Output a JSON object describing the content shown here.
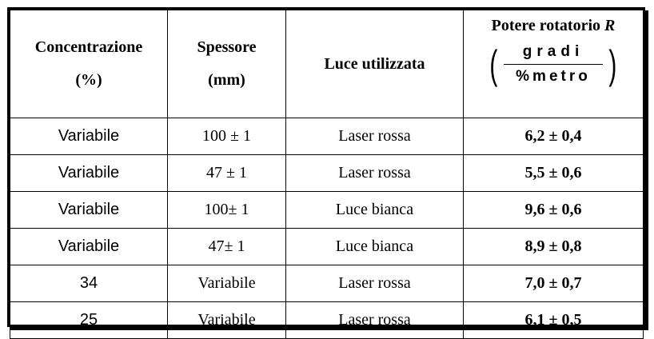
{
  "table": {
    "headers": {
      "concentration_line1": "Concentrazione",
      "concentration_line2": "(%)",
      "thickness_line1": "Spessore",
      "thickness_line2": "(mm)",
      "light": "Luce utilizzata",
      "rotatory_prefix": "Potere rotatorio ",
      "rotatory_symbol": "R",
      "unit_numerator": "gradi",
      "unit_denominator": "%metro"
    },
    "rows": [
      {
        "concentration": "Variabile",
        "thickness": "100 ± 1",
        "light": "Laser rossa",
        "rotatory_power": "6,2 ± 0,4"
      },
      {
        "concentration": "Variabile",
        "thickness": "47 ± 1",
        "light": "Laser rossa",
        "rotatory_power": "5,5 ± 0,6"
      },
      {
        "concentration": "Variabile",
        "thickness": "100± 1",
        "light": "Luce bianca",
        "rotatory_power": "9,6 ± 0,6"
      },
      {
        "concentration": "Variabile",
        "thickness": "47± 1",
        "light": "Luce bianca",
        "rotatory_power": "8,9 ± 0,8"
      },
      {
        "concentration": "34",
        "thickness": "Variabile",
        "light": "Laser rossa",
        "rotatory_power": "7,0 ± 0,7"
      },
      {
        "concentration": "25",
        "thickness": "Variabile",
        "light": "Laser rossa",
        "rotatory_power": "6,1 ± 0,5"
      }
    ]
  }
}
